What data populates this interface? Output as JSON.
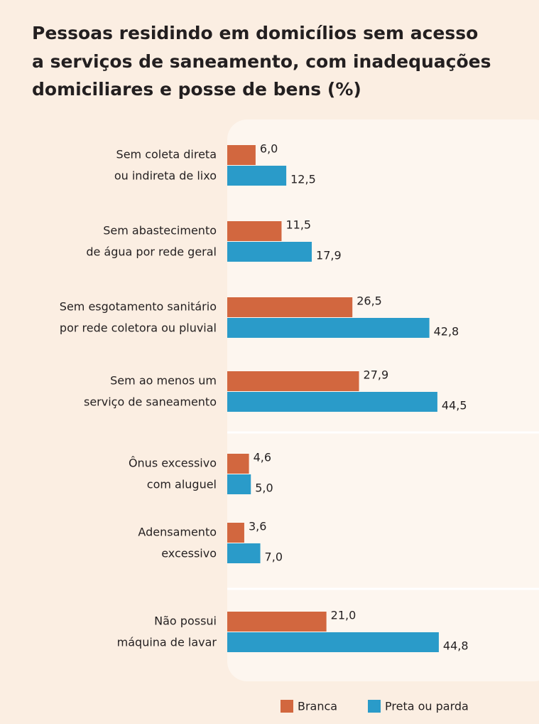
{
  "chart_data": {
    "type": "bar",
    "orientation": "horizontal",
    "title": [
      "Pessoas residindo em domicílios sem acesso",
      "a serviços de saneamento, com inadequações",
      "domiciliares e posse de bens (%)"
    ],
    "categories": [
      [
        "Sem coleta direta",
        "ou indireta de lixo"
      ],
      [
        "Sem abastecimento",
        "de água por rede geral"
      ],
      [
        "Sem esgotamento sanitário",
        "por rede coletora ou pluvial"
      ],
      [
        "Sem ao menos um",
        "serviço de saneamento"
      ],
      [
        "Ônus excessivo",
        "com aluguel"
      ],
      [
        "Adensamento",
        "excessivo"
      ],
      [
        "Não possui",
        "máquina de lavar"
      ]
    ],
    "series": [
      {
        "name": "Branca",
        "color": "#d2673f",
        "values": [
          6.0,
          11.5,
          26.5,
          27.9,
          4.6,
          3.6,
          21.0
        ],
        "value_labels": [
          "6,0",
          "11,5",
          "26,5",
          "27,9",
          "4,6",
          "3,6",
          "21,0"
        ]
      },
      {
        "name": "Preta ou parda",
        "color": "#2a9bc9",
        "values": [
          12.5,
          17.9,
          42.8,
          44.5,
          5.0,
          7.0,
          44.8
        ],
        "value_labels": [
          "12,5",
          "17,9",
          "42,8",
          "44,5",
          "5,0",
          "7,0",
          "44,8"
        ]
      }
    ]
  }
}
